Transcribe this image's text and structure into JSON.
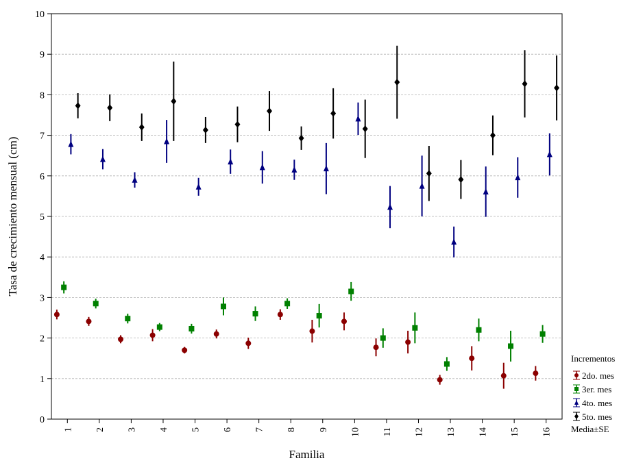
{
  "chart_data": {
    "type": "scatter",
    "subtype": "mean-with-error-bars",
    "xlabel": "Familia",
    "ylabel": "Tasa de crecimiento mensual (cm)",
    "ylim": [
      0,
      10
    ],
    "yticks": [
      0,
      1,
      2,
      3,
      4,
      5,
      6,
      7,
      8,
      9,
      10
    ],
    "categories": [
      "1",
      "2",
      "3",
      "4",
      "5",
      "6",
      "7",
      "8",
      "9",
      "10",
      "11",
      "12",
      "13",
      "14",
      "15",
      "16"
    ],
    "grid": "horizontal-dashed",
    "legend": {
      "title": "Incrementos",
      "position": "right",
      "footer": "Media±SE"
    },
    "series": [
      {
        "name": "2do. mes",
        "color": "#8b0000",
        "marker": "circle",
        "values": [
          2.58,
          2.41,
          1.97,
          2.07,
          1.7,
          2.1,
          1.87,
          2.58,
          2.17,
          2.41,
          1.77,
          1.9,
          0.97,
          1.5,
          1.07,
          1.13
        ],
        "errors": [
          0.12,
          0.11,
          0.1,
          0.15,
          0.08,
          0.11,
          0.14,
          0.13,
          0.28,
          0.22,
          0.22,
          0.28,
          0.12,
          0.3,
          0.32,
          0.18
        ]
      },
      {
        "name": "3er. mes",
        "color": "#008000",
        "marker": "square",
        "values": [
          3.25,
          2.85,
          2.48,
          2.27,
          2.23,
          2.78,
          2.6,
          2.85,
          2.55,
          3.15,
          2.0,
          2.25,
          1.36,
          2.2,
          1.8,
          2.1
        ],
        "errors": [
          0.15,
          0.12,
          0.12,
          0.1,
          0.12,
          0.22,
          0.18,
          0.13,
          0.29,
          0.23,
          0.24,
          0.38,
          0.17,
          0.28,
          0.38,
          0.22
        ]
      },
      {
        "name": "4to. mes",
        "color": "#000080",
        "marker": "triangle",
        "values": [
          6.78,
          6.41,
          5.9,
          6.85,
          5.73,
          6.35,
          6.21,
          6.15,
          6.18,
          7.41,
          5.23,
          5.75,
          4.37,
          5.61,
          5.96,
          6.53
        ],
        "errors": [
          0.25,
          0.25,
          0.19,
          0.53,
          0.22,
          0.3,
          0.4,
          0.25,
          0.63,
          0.4,
          0.52,
          0.75,
          0.38,
          0.62,
          0.5,
          0.52
        ]
      },
      {
        "name": "5to. mes",
        "color": "#000000",
        "marker": "diamond",
        "values": [
          7.73,
          7.68,
          7.2,
          7.84,
          7.13,
          7.27,
          7.6,
          6.93,
          7.54,
          7.16,
          8.31,
          6.06,
          5.91,
          7.0,
          8.27,
          8.17
        ],
        "errors": [
          0.31,
          0.33,
          0.34,
          0.98,
          0.32,
          0.44,
          0.49,
          0.29,
          0.62,
          0.72,
          0.9,
          0.68,
          0.48,
          0.49,
          0.83,
          0.8
        ]
      }
    ]
  },
  "colors": {
    "background": "#ffffff",
    "grid": "#b0b0b0",
    "axis": "#000000"
  }
}
